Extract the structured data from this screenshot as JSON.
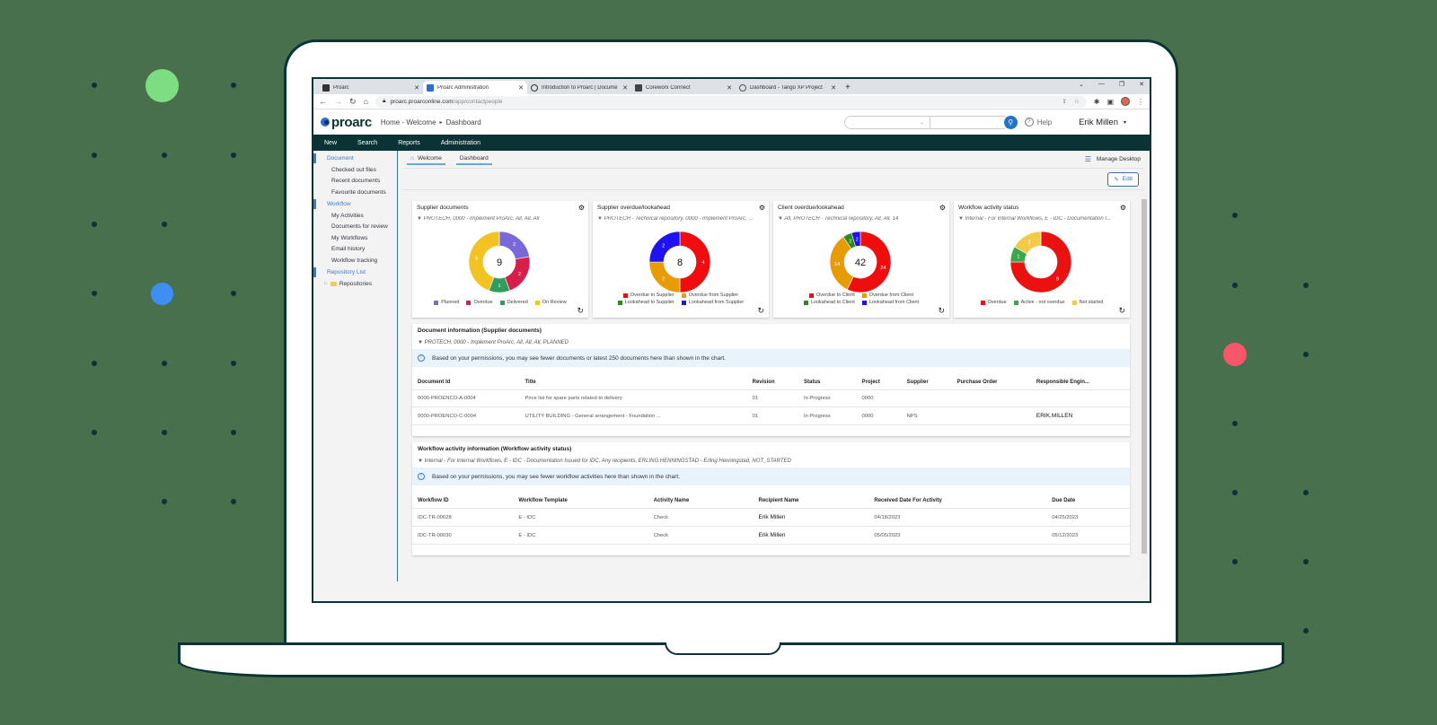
{
  "browser": {
    "tabs": [
      {
        "title": "Proarc",
        "active": false,
        "favicon_color": "#333333"
      },
      {
        "title": "Proarc Administration",
        "active": true,
        "favicon_color": "#2b6fd6"
      },
      {
        "title": "Introduction to Proarc | Docume",
        "active": false,
        "favicon_color": "#ffffff"
      },
      {
        "title": "Coreworx Connect",
        "active": false,
        "favicon_color": "#444444"
      },
      {
        "title": "Dashboard - Tango XP Project",
        "active": false,
        "favicon_color": "#777777"
      }
    ],
    "new_tab": "+",
    "url_host": "proarc.proarconline.com",
    "url_path": "/app/contactpeople"
  },
  "app": {
    "logo": "proarc",
    "breadcrumb": {
      "home": "Home - Welcome",
      "sep": "▸",
      "current": "Dashboard"
    },
    "help": "Help",
    "user": "Erik Millen",
    "nav": [
      "New",
      "Search",
      "Reports",
      "Administration"
    ]
  },
  "sidebar": {
    "sections": [
      {
        "label": "Document",
        "items": [
          "Checked out files",
          "Recent documents",
          "Favourite documents"
        ]
      },
      {
        "label": "Workflow",
        "items": [
          "My Activities",
          "Documents for review",
          "My Workflows",
          "Email history",
          "Workflow tracking"
        ]
      },
      {
        "label": "Repository List",
        "items": []
      }
    ],
    "repositories": "Repositories"
  },
  "content": {
    "tabs": [
      "Welcome",
      "Dashboard"
    ],
    "manage_desktop": "Manage Desktop",
    "edit": "Edit"
  },
  "widgets": [
    {
      "title": "Supplier documents",
      "filter": "PROTECH, 0000 - Implement ProArc, All, All, All",
      "total": "9",
      "segments": [
        {
          "label": "Planned",
          "value": 2,
          "color": "#7b68d8"
        },
        {
          "label": "Overdue",
          "value": 2,
          "color": "#d81e4a"
        },
        {
          "label": "Delivered",
          "value": 1,
          "color": "#2e9e5e"
        },
        {
          "label": "On Review",
          "value": 4,
          "color": "#f3c323"
        }
      ]
    },
    {
      "title": "Supplier overdue/lookahead",
      "filter": "PROTECH - Technical repository, 0000 - Implement ProArc, ...",
      "total": "8",
      "segments": [
        {
          "label": "Overdue to Supplier",
          "value": 4,
          "color": "#ef0d0d"
        },
        {
          "label": "Overdue from Supplier",
          "value": 2,
          "color": "#e79b05"
        },
        {
          "label": "Lookahead to Supplier",
          "value": 0,
          "color": "#2c8a1a"
        },
        {
          "label": "Lookahead from Supplier",
          "value": 2,
          "color": "#1e12f0"
        }
      ]
    },
    {
      "title": "Client overdue/lookahead",
      "filter": "All, PROTECH - Technical repository, All, All, 14",
      "total": "42",
      "segments": [
        {
          "label": "Overdue to Client",
          "value": 24,
          "color": "#ef0d0d"
        },
        {
          "label": "Overdue from Client",
          "value": 14,
          "color": "#e79b05"
        },
        {
          "label": "Lookahead to Client",
          "value": 2,
          "color": "#2c8a1a"
        },
        {
          "label": "Lookahead from Client",
          "value": 2,
          "color": "#1e12f0"
        }
      ]
    },
    {
      "title": "Workflow activity status",
      "filter": "Internal - For Internal Workflows, E - IDC - Documentation I...",
      "total": "",
      "segments": [
        {
          "label": "Overdue",
          "value": 9,
          "color": "#ea1111"
        },
        {
          "label": "Active - not overdue",
          "value": 1,
          "color": "#3ea64a"
        },
        {
          "label": "Not started",
          "value": 2,
          "color": "#f3c94a"
        }
      ]
    }
  ],
  "doc_panel": {
    "title": "Document information (Supplier documents)",
    "filter": "PROTECH, 0000 - Implement ProArc, All, All, All, PLANNED",
    "info": "Based on your permissions, you may see fewer documents or latest 250 documents here than shown in the chart.",
    "columns": [
      "Document Id",
      "Title",
      "Revision",
      "Status",
      "Project",
      "Supplier",
      "Purchase Order",
      "Responsible Engin..."
    ],
    "rows": [
      [
        "0000-PROENCO-A-0004",
        "Price list for spare parts related to delivery",
        "01",
        "In Progress",
        "0000",
        "",
        "",
        ""
      ],
      [
        "0000-PROENCO-C-0004",
        "UTILITY BUILDING - General arrangement - Foundation ...",
        "01",
        "In Progress",
        "0000",
        "NPS",
        "",
        "ERIK.MILLEN"
      ]
    ]
  },
  "wf_panel": {
    "title": "Workflow activity information (Workflow activity status)",
    "filter": "Internal - For Internal Workflows, E - IDC - Documentation Issued for IDC, Any recipients, ERLING.HENNINGSTAD - Erling Henningstad, NOT_STARTED",
    "info": "Based on your permissions, you may see fewer workflow activities here than shown in the chart.",
    "columns": [
      "Workflow ID",
      "Workflow Template",
      "Activity Name",
      "Recipient Name",
      "Received Date For Activity",
      "Due Date"
    ],
    "rows": [
      [
        "IDC-TR-00028",
        "E - IDC",
        "Check",
        "Erik Millen",
        "04/18/2023",
        "04/25/2023"
      ],
      [
        "IDC-TR-00030",
        "E - IDC",
        "Check",
        "Erik Millen",
        "05/05/2023",
        "05/12/2023"
      ]
    ]
  }
}
